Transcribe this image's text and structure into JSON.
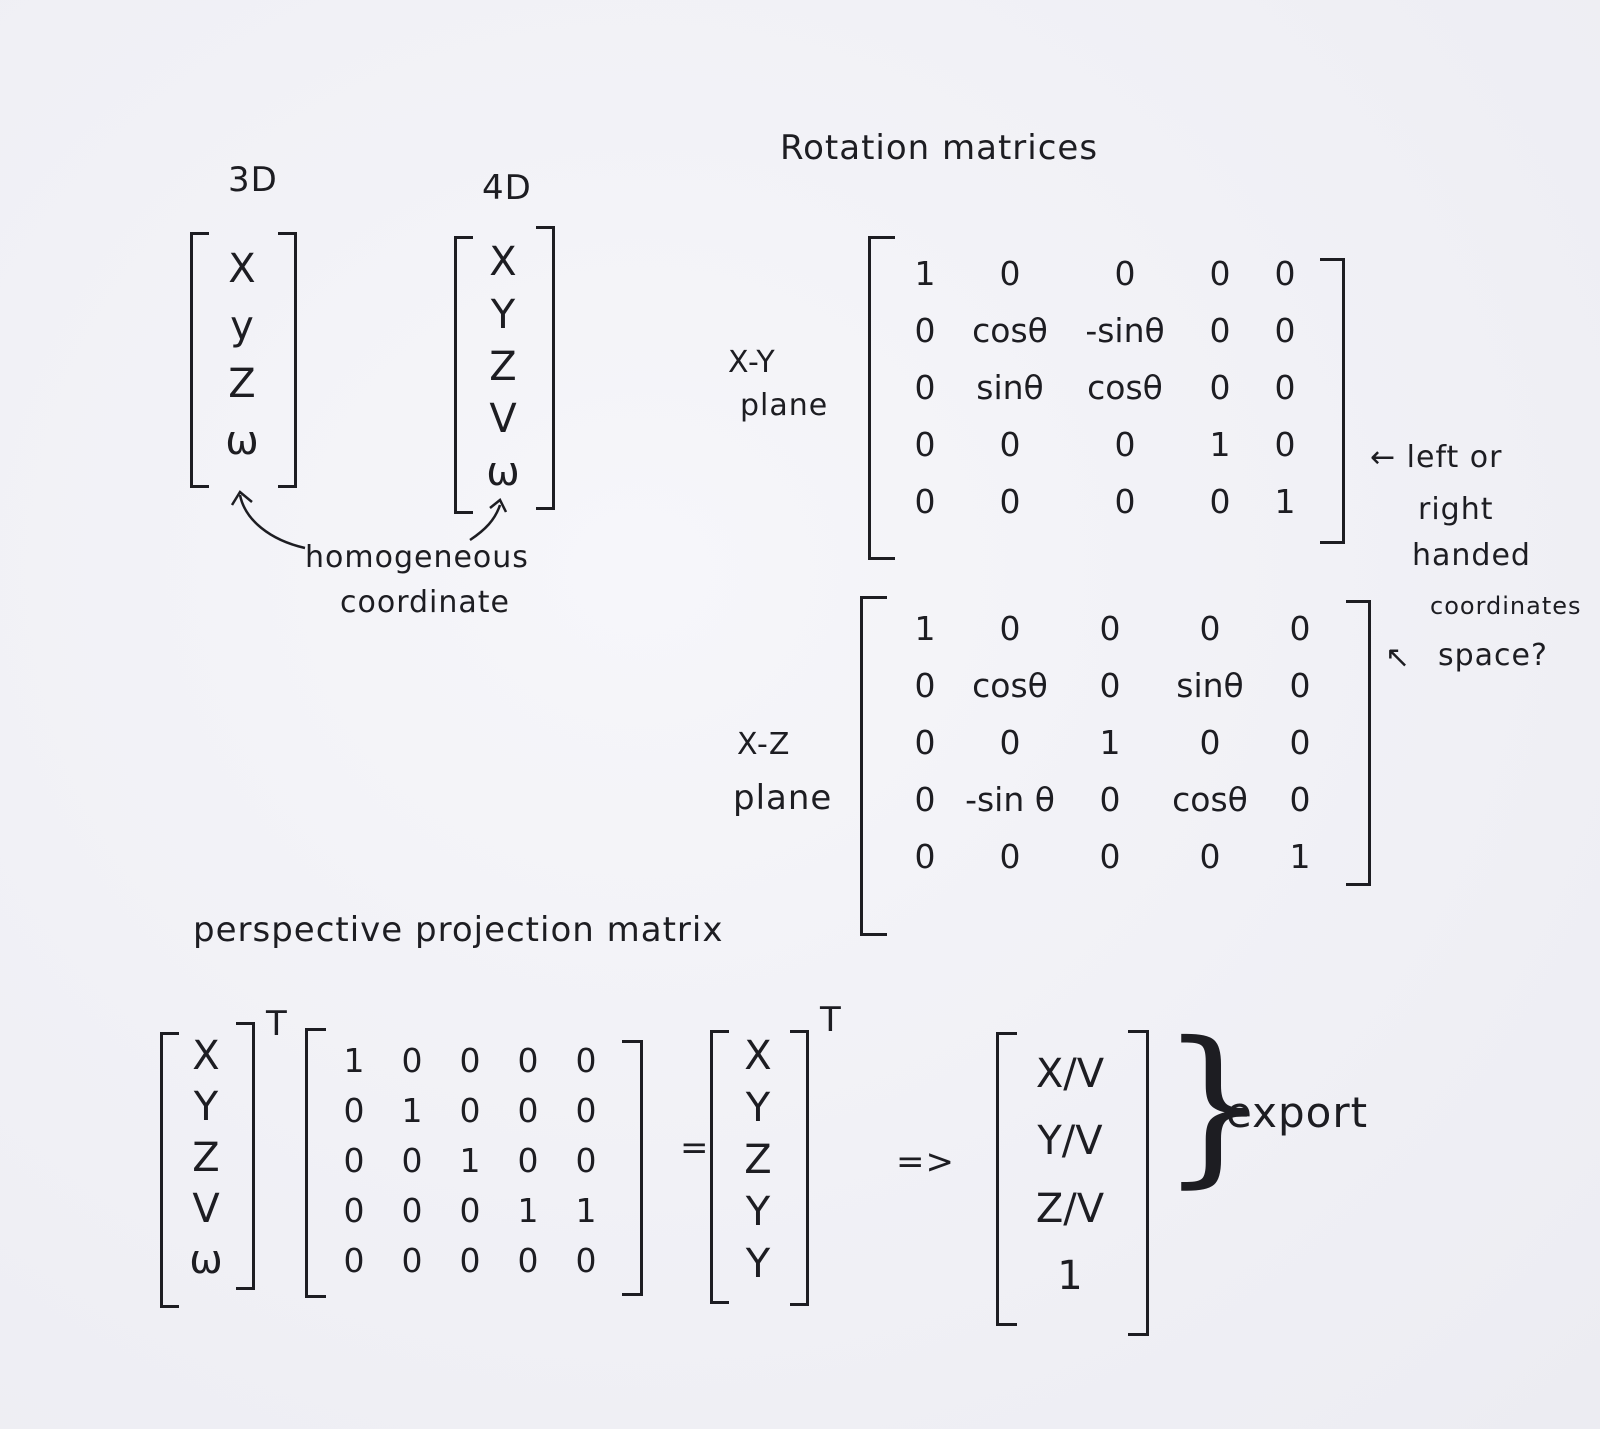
{
  "labels": {
    "col_3d": "3D",
    "col_4d": "4D",
    "rotation_title": "Rotation matrices",
    "xy_plane_line1": "X-Y",
    "xy_plane_line2": "plane",
    "xz_plane_line1": "X-Z",
    "xz_plane_line2": "plane",
    "homog_line1": "homogeneous",
    "homog_line2": "coordinate",
    "handed_line1": "← left or",
    "handed_line2": "right",
    "handed_line3": "handed",
    "handed_line4": "coordinates",
    "handed_line5": "space?",
    "handed_arrow": "↖",
    "perspective_title": "perspective projection matrix",
    "export": "export",
    "transpose1": "T",
    "transpose2": "T",
    "equals": "=",
    "implies": "=>"
  },
  "vec3d": [
    "X",
    "y",
    "Z",
    "ω"
  ],
  "vec4d": [
    "X",
    "Y",
    "Z",
    "V",
    "ω"
  ],
  "rot_xy": [
    [
      "1",
      "0",
      "0",
      "0",
      "0"
    ],
    [
      "0",
      "cosθ",
      "-sinθ",
      "0",
      "0"
    ],
    [
      "0",
      "sinθ",
      "cosθ",
      "0",
      "0"
    ],
    [
      "0",
      "0",
      "0",
      "1",
      "0"
    ],
    [
      "0",
      "0",
      "0",
      "0",
      "1"
    ]
  ],
  "rot_xz": [
    [
      "1",
      "0",
      "0",
      "0",
      "0"
    ],
    [
      "0",
      "cosθ",
      "0",
      "sinθ",
      "0"
    ],
    [
      "0",
      "0",
      "1",
      "0",
      "0"
    ],
    [
      "0",
      "-sin θ",
      "0",
      "cosθ",
      "0"
    ],
    [
      "0",
      "0",
      "0",
      "0",
      "1"
    ]
  ],
  "persp_input": [
    "X",
    "Y",
    "Z",
    "V",
    "ω"
  ],
  "persp_matrix": [
    [
      "1",
      "0",
      "0",
      "0",
      "0"
    ],
    [
      "0",
      "1",
      "0",
      "0",
      "0"
    ],
    [
      "0",
      "0",
      "1",
      "0",
      "0"
    ],
    [
      "0",
      "0",
      "0",
      "1",
      "1"
    ],
    [
      "0",
      "0",
      "0",
      "0",
      "0"
    ]
  ],
  "persp_result": [
    "X",
    "Y",
    "Z",
    "Y",
    "Y"
  ],
  "export_vec": [
    "X/V",
    "Y/V",
    "Z/V",
    "1"
  ]
}
